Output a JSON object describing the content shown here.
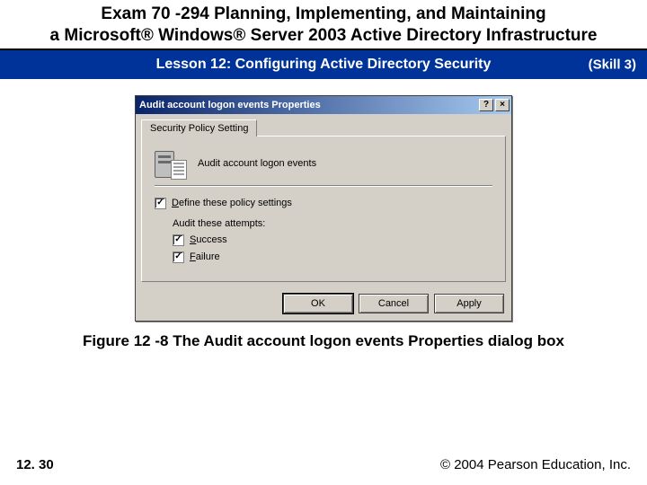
{
  "slide": {
    "title_line1": "Exam 70 -294 Planning, Implementing, and Maintaining",
    "title_line2": "a Microsoft® Windows® Server 2003 Active Directory Infrastructure",
    "lesson": "Lesson 12: Configuring Active Directory Security",
    "skill": "(Skill 3)",
    "figure_caption": "Figure 12 -8 The Audit account logon events Properties dialog box",
    "page_number": "12. 30",
    "copyright": "© 2004 Pearson Education, Inc."
  },
  "dialog": {
    "title": "Audit account logon events Properties",
    "help_btn": "?",
    "close_btn": "×",
    "tab_label": "Security Policy Setting",
    "policy_name": "Audit account logon events",
    "define_label_pre": "D",
    "define_label_rest": "efine these policy settings",
    "define_checked": true,
    "attempts_label": "Audit these attempts:",
    "success_pre": "S",
    "success_rest": "uccess",
    "success_checked": true,
    "failure_pre": "F",
    "failure_rest": "ailure",
    "failure_checked": true,
    "buttons": {
      "ok": "OK",
      "cancel": "Cancel",
      "apply": "Apply"
    }
  },
  "colors": {
    "titlebar_start": "#0a246a",
    "titlebar_end": "#a6caf0",
    "dialog_face": "#d4d0c8",
    "blue_bar": "#003399"
  }
}
